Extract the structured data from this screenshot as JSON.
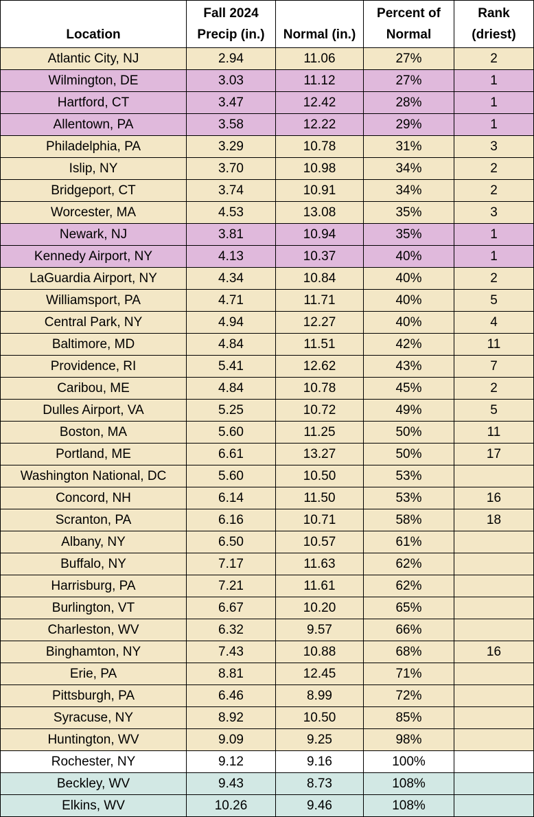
{
  "table": {
    "header": [
      [
        "Location"
      ],
      [
        "Fall 2024",
        "Precip (in.)"
      ],
      [
        "Normal (in.)"
      ],
      [
        "Percent of",
        "Normal"
      ],
      [
        "Rank",
        "(driest)"
      ]
    ],
    "rows": [
      [
        "Atlantic City, NJ",
        "2.94",
        "11.06",
        "27%",
        "2"
      ],
      [
        "Wilmington, DE",
        "3.03",
        "11.12",
        "27%",
        "1"
      ],
      [
        "Hartford, CT",
        "3.47",
        "12.42",
        "28%",
        "1"
      ],
      [
        "Allentown, PA",
        "3.58",
        "12.22",
        "29%",
        "1"
      ],
      [
        "Philadelphia, PA",
        "3.29",
        "10.78",
        "31%",
        "3"
      ],
      [
        "Islip, NY",
        "3.70",
        "10.98",
        "34%",
        "2"
      ],
      [
        "Bridgeport, CT",
        "3.74",
        "10.91",
        "34%",
        "2"
      ],
      [
        "Worcester, MA",
        "4.53",
        "13.08",
        "35%",
        "3"
      ],
      [
        "Newark, NJ",
        "3.81",
        "10.94",
        "35%",
        "1"
      ],
      [
        "Kennedy Airport, NY",
        "4.13",
        "10.37",
        "40%",
        "1"
      ],
      [
        "LaGuardia Airport, NY",
        "4.34",
        "10.84",
        "40%",
        "2"
      ],
      [
        "Williamsport, PA",
        "4.71",
        "11.71",
        "40%",
        "5"
      ],
      [
        "Central Park, NY",
        "4.94",
        "12.27",
        "40%",
        "4"
      ],
      [
        "Baltimore, MD",
        "4.84",
        "11.51",
        "42%",
        "11"
      ],
      [
        "Providence, RI",
        "5.41",
        "12.62",
        "43%",
        "7"
      ],
      [
        "Caribou, ME",
        "4.84",
        "10.78",
        "45%",
        "2"
      ],
      [
        "Dulles Airport, VA",
        "5.25",
        "10.72",
        "49%",
        "5"
      ],
      [
        "Boston, MA",
        "5.60",
        "11.25",
        "50%",
        "11"
      ],
      [
        "Portland, ME",
        "6.61",
        "13.27",
        "50%",
        "17"
      ],
      [
        "Washington National, DC",
        "5.60",
        "10.50",
        "53%",
        null
      ],
      [
        "Concord, NH",
        "6.14",
        "11.50",
        "53%",
        "16"
      ],
      [
        "Scranton, PA",
        "6.16",
        "10.71",
        "58%",
        "18"
      ],
      [
        "Albany, NY",
        "6.50",
        "10.57",
        "61%",
        null
      ],
      [
        "Buffalo, NY",
        "7.17",
        "11.63",
        "62%",
        null
      ],
      [
        "Harrisburg, PA",
        "7.21",
        "11.61",
        "62%",
        null
      ],
      [
        "Burlington, VT",
        "6.67",
        "10.20",
        "65%",
        null
      ],
      [
        "Charleston, WV",
        "6.32",
        "9.57",
        "66%",
        null
      ],
      [
        "Binghamton, NY",
        "7.43",
        "10.88",
        "68%",
        "16"
      ],
      [
        "Erie, PA",
        "8.81",
        "12.45",
        "71%",
        null
      ],
      [
        "Pittsburgh, PA",
        "6.46",
        "8.99",
        "72%",
        null
      ],
      [
        "Syracuse, NY",
        "8.92",
        "10.50",
        "85%",
        null
      ],
      [
        "Huntington, WV",
        "9.09",
        "9.25",
        "98%",
        null
      ],
      [
        "Rochester, NY",
        "9.12",
        "9.16",
        "100%",
        null
      ],
      [
        "Beckley, WV",
        "9.43",
        "8.73",
        "108%",
        null
      ],
      [
        "Elkins, WV",
        "10.26",
        "9.46",
        "108%",
        null
      ]
    ],
    "row_fills": [
      "#f3e7c6",
      "#e0b9dc",
      "#e0b9dc",
      "#e0b9dc",
      "#f3e7c6",
      "#f3e7c6",
      "#f3e7c6",
      "#f3e7c6",
      "#e0b9dc",
      "#e0b9dc",
      "#f3e7c6",
      "#f3e7c6",
      "#f3e7c6",
      "#f3e7c6",
      "#f3e7c6",
      "#f3e7c6",
      "#f3e7c6",
      "#f3e7c6",
      "#f3e7c6",
      "#f3e7c6",
      "#f3e7c6",
      "#f3e7c6",
      "#f3e7c6",
      "#f3e7c6",
      "#f3e7c6",
      "#f3e7c6",
      "#f3e7c6",
      "#f3e7c6",
      "#f3e7c6",
      "#f3e7c6",
      "#f3e7c6",
      "#f3e7c6",
      "#ffffff",
      "#d2e8e4",
      "#d2e8e4"
    ]
  }
}
